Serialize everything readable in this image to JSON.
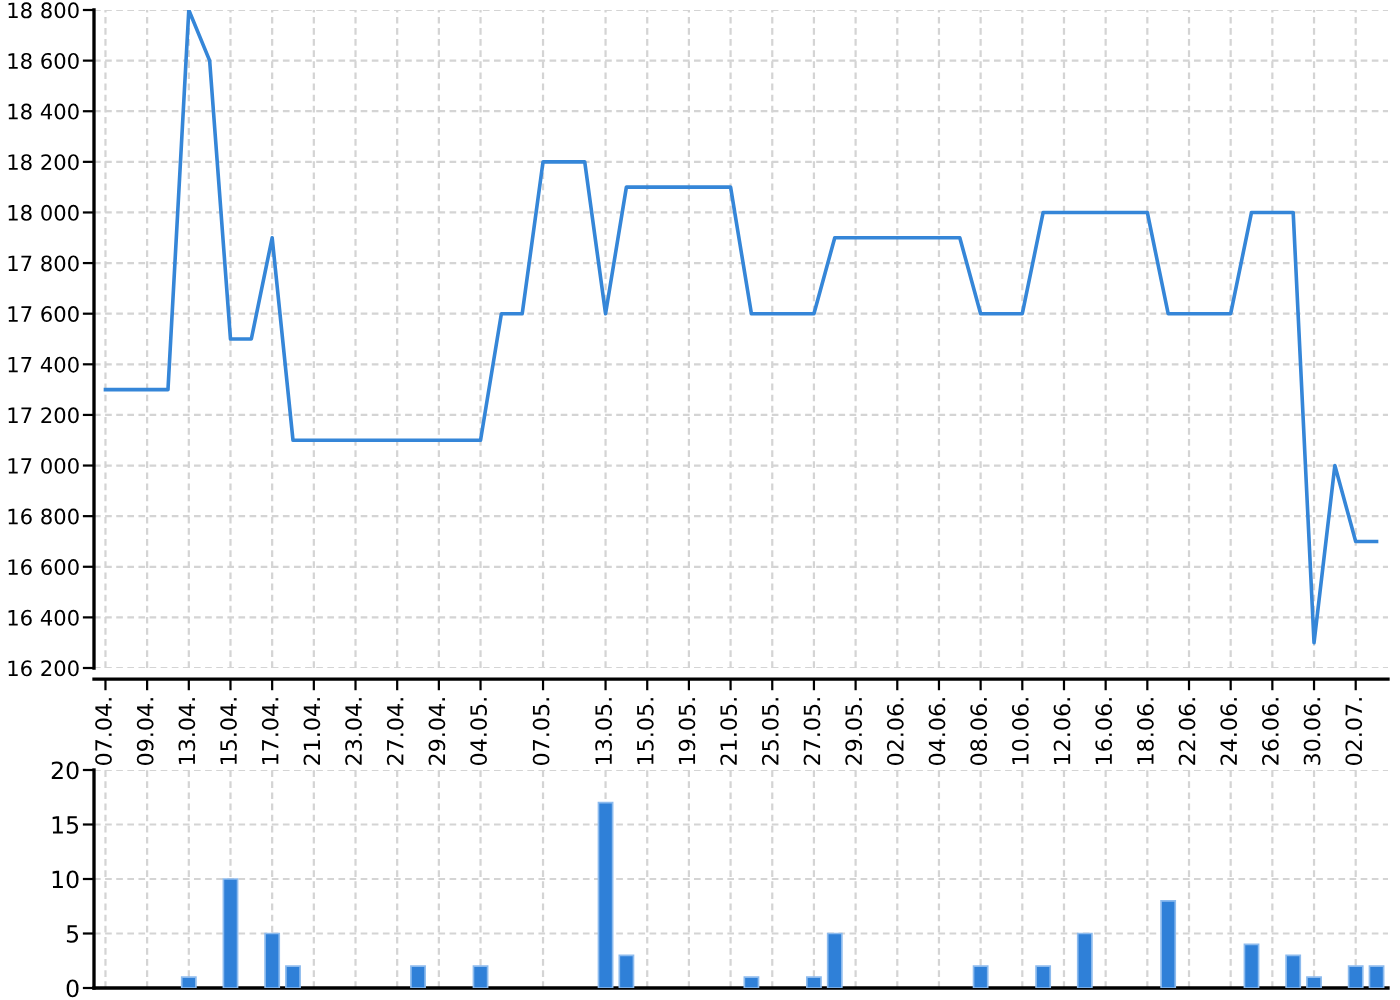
{
  "chart_data": [
    {
      "type": "line",
      "categories": [
        "07.04.",
        null,
        "09.04.",
        null,
        "13.04.",
        null,
        "15.04.",
        null,
        "17.04.",
        null,
        "21.04.",
        null,
        "23.04.",
        null,
        "27.04.",
        null,
        "29.04.",
        null,
        "04.05.",
        null,
        null,
        "07.05.",
        null,
        null,
        "13.05.",
        null,
        "15.05.",
        null,
        "19.05.",
        null,
        "21.05.",
        null,
        "25.05.",
        null,
        "27.05.",
        null,
        "29.05.",
        null,
        "02.06.",
        null,
        "04.06.",
        null,
        "08.06.",
        null,
        "10.06.",
        null,
        "12.06.",
        null,
        "16.06.",
        null,
        "18.06.",
        null,
        "22.06.",
        null,
        "24.06.",
        null,
        "26.06.",
        null,
        "30.06.",
        null,
        "02.07.",
        null
      ],
      "series": [
        {
          "color": "#3586d8",
          "values": [
            17300,
            17300,
            17300,
            17300,
            18800,
            18600,
            17500,
            17500,
            17900,
            17100,
            17100,
            17100,
            17100,
            17100,
            17100,
            17100,
            17100,
            17100,
            17100,
            17600,
            17600,
            18200,
            18200,
            18200,
            17600,
            18100,
            18100,
            18100,
            18100,
            18100,
            18100,
            17600,
            17600,
            17600,
            17600,
            17900,
            17900,
            17900,
            17900,
            17900,
            17900,
            17900,
            17600,
            17600,
            17600,
            18000,
            18000,
            18000,
            18000,
            18000,
            18000,
            17600,
            17600,
            17600,
            17600,
            18000,
            18000,
            18000,
            16300,
            17000,
            16700,
            16700
          ]
        }
      ],
      "ylim": [
        16200,
        18800
      ],
      "yticks": [
        {
          "value": 16200,
          "label": "16 200"
        },
        {
          "value": 16400,
          "label": "16 400"
        },
        {
          "value": 16600,
          "label": "16 600"
        },
        {
          "value": 16800,
          "label": "16 800"
        },
        {
          "value": 17000,
          "label": "17 000"
        },
        {
          "value": 17200,
          "label": "17 200"
        },
        {
          "value": 17400,
          "label": "17 400"
        },
        {
          "value": 17600,
          "label": "17 600"
        },
        {
          "value": 17800,
          "label": "17 800"
        },
        {
          "value": 18000,
          "label": "18 000"
        },
        {
          "value": 18200,
          "label": "18 200"
        },
        {
          "value": 18400,
          "label": "18 400"
        },
        {
          "value": 18600,
          "label": "18 600"
        },
        {
          "value": 18800,
          "label": "18 800"
        }
      ],
      "grid": true
    },
    {
      "type": "bar",
      "categories": [
        "07.04.",
        null,
        "09.04.",
        null,
        "13.04.",
        null,
        "15.04.",
        null,
        "17.04.",
        null,
        "21.04.",
        null,
        "23.04.",
        null,
        "27.04.",
        null,
        "29.04.",
        null,
        "04.05.",
        null,
        null,
        "07.05.",
        null,
        null,
        "13.05.",
        null,
        "15.05.",
        null,
        "19.05.",
        null,
        "21.05.",
        null,
        "25.05.",
        null,
        "27.05.",
        null,
        "29.05.",
        null,
        "02.06.",
        null,
        "04.06.",
        null,
        "08.06.",
        null,
        "10.06.",
        null,
        "12.06.",
        null,
        "16.06.",
        null,
        "18.06.",
        null,
        "22.06.",
        null,
        "24.06.",
        null,
        "26.06.",
        null,
        "30.06.",
        null,
        "02.07.",
        null
      ],
      "values": [
        0,
        0,
        0,
        0,
        1,
        0,
        10,
        0,
        5,
        2,
        0,
        0,
        0,
        0,
        0,
        2,
        0,
        0,
        2,
        0,
        0,
        0,
        0,
        0,
        17,
        3,
        0,
        0,
        0,
        0,
        0,
        1,
        0,
        0,
        1,
        5,
        0,
        0,
        0,
        0,
        0,
        0,
        2,
        0,
        0,
        2,
        0,
        5,
        0,
        0,
        0,
        8,
        0,
        0,
        0,
        4,
        0,
        3,
        1,
        0,
        2,
        2
      ],
      "color": "#2f80d8",
      "ylim": [
        0,
        20
      ],
      "yticks": [
        0,
        5,
        10,
        15,
        20
      ],
      "grid": true,
      "tick_labels": "y"
    }
  ]
}
